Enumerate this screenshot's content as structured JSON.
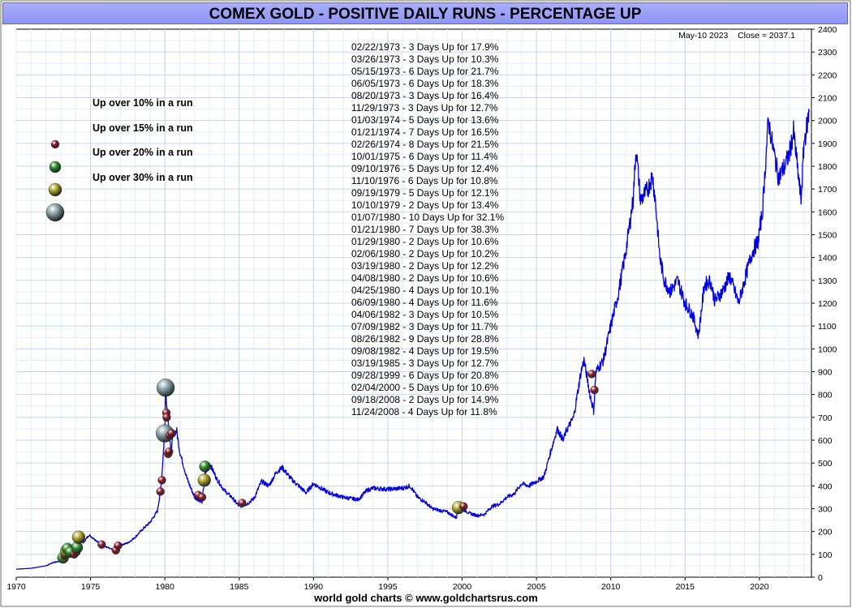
{
  "title": "COMEX GOLD - POSITIVE DAILY RUNS - PERCENTAGE UP",
  "footer": "world gold charts © www.goldchartsrus.com",
  "last_close": {
    "date": "May-10  2023",
    "label": "Close = 2037.1"
  },
  "legend": [
    {
      "label": "Up over 10% in a run",
      "color": "#8a1020",
      "size": "small"
    },
    {
      "label": "Up over 15% in a run",
      "color": "#1f8a1f",
      "size": "medium"
    },
    {
      "label": "Up over 20% in a run",
      "color": "#a8a01a",
      "size": "large"
    },
    {
      "label": "Up over 30% in a run",
      "color": "#7f9aa0",
      "size": "xlarge"
    }
  ],
  "runs": [
    "02/22/1973 - 3 Days Up for 17.9%",
    "03/26/1973 - 3 Days Up for 10.3%",
    "05/15/1973 - 6 Days Up for 21.7%",
    "06/05/1973 - 6 Days Up for 18.3%",
    "08/20/1973 - 3 Days Up for 16.4%",
    "11/29/1973 - 3 Days Up for 12.7%",
    "01/03/1974 - 5 Days Up for 13.6%",
    "01/21/1974 - 7 Days Up for 16.5%",
    "02/26/1974 - 8 Days Up for 21.5%",
    "10/01/1975 - 6 Days Up for 11.4%",
    "09/10/1976 - 5 Days Up for 12.4%",
    "11/10/1976 - 6 Days Up for 10.8%",
    "09/19/1979 - 5 Days Up for 12.1%",
    "10/10/1979 - 2 Days Up for 13.4%",
    "01/07/1980 - 10 Days Up for 32.1%",
    "01/21/1980 - 7 Days Up for 38.3%",
    "01/29/1980 - 2 Days Up for 10.6%",
    "02/06/1980 - 2 Days Up for 10.2%",
    "03/19/1980 - 2 Days Up for 12.2%",
    "04/08/1980 - 2 Days Up for 10.6%",
    "04/25/1980 - 4 Days Up for 10.1%",
    "06/09/1980 - 4 Days Up for 11.6%",
    "04/06/1982 - 3 Days Up for 10.5%",
    "07/09/1982 - 3 Days Up for 11.7%",
    "08/26/1982 - 9 Days Up for 28.8%",
    "09/08/1982 - 4 Days Up for 19.5%",
    "03/19/1985 - 3 Days Up for 12.7%",
    "09/28/1999 - 6 Days Up for 20.8%",
    "02/04/2000 - 5 Days Up for 10.6%",
    "09/18/2008 - 2 Days Up for 14.9%",
    "11/24/2008 - 4 Days Up for 11.8%"
  ],
  "chart_data": {
    "type": "line",
    "title": "COMEX GOLD - POSITIVE DAILY RUNS - PERCENTAGE UP",
    "xlabel": "",
    "ylabel": "",
    "xlim": [
      1970,
      2023.5
    ],
    "ylim": [
      0,
      2400
    ],
    "x_ticks": [
      1970,
      1975,
      1980,
      1985,
      1990,
      1995,
      2000,
      2005,
      2010,
      2015,
      2020
    ],
    "y_ticks": [
      0,
      100,
      200,
      300,
      400,
      500,
      600,
      700,
      800,
      900,
      1000,
      1100,
      1200,
      1300,
      1400,
      1500,
      1600,
      1700,
      1800,
      1900,
      2000,
      2100,
      2200,
      2300,
      2400
    ],
    "y_axis_side": "right",
    "grid": true,
    "series": [
      {
        "color": "#0000e0",
        "x": [
          1970.0,
          1971.0,
          1972.0,
          1972.5,
          1973.0,
          1973.2,
          1973.45,
          1973.7,
          1974.0,
          1974.2,
          1974.5,
          1974.9,
          1975.3,
          1975.8,
          1976.3,
          1976.7,
          1977.0,
          1977.5,
          1978.0,
          1978.5,
          1979.0,
          1979.5,
          1979.75,
          1980.0,
          1980.05,
          1980.2,
          1980.4,
          1980.6,
          1980.8,
          1981.0,
          1981.5,
          1982.0,
          1982.5,
          1982.7,
          1983.0,
          1983.5,
          1984.0,
          1984.5,
          1985.0,
          1985.5,
          1986.0,
          1986.5,
          1987.0,
          1987.5,
          1987.9,
          1988.5,
          1989.0,
          1989.5,
          1990.0,
          1991.0,
          1992.0,
          1993.0,
          1993.6,
          1994.0,
          1995.0,
          1996.0,
          1996.5,
          1997.0,
          1997.5,
          1998.0,
          1999.0,
          1999.6,
          1999.8,
          2000.0,
          2000.5,
          2001.0,
          2001.5,
          2002.0,
          2002.5,
          2003.0,
          2003.5,
          2004.0,
          2004.5,
          2005.0,
          2005.5,
          2006.0,
          2006.4,
          2006.8,
          2007.0,
          2007.5,
          2008.0,
          2008.2,
          2008.6,
          2008.85,
          2009.0,
          2009.5,
          2010.0,
          2010.5,
          2011.0,
          2011.5,
          2011.7,
          2012.0,
          2012.5,
          2012.8,
          2013.0,
          2013.3,
          2013.6,
          2014.0,
          2014.5,
          2015.0,
          2015.5,
          2015.9,
          2016.3,
          2016.7,
          2017.0,
          2017.5,
          2018.0,
          2018.6,
          2019.0,
          2019.5,
          2019.9,
          2020.2,
          2020.6,
          2021.0,
          2021.3,
          2021.7,
          2022.0,
          2022.3,
          2022.8,
          2023.0,
          2023.35
        ],
        "y": [
          35,
          39,
          50,
          65,
          70,
          90,
          120,
          100,
          130,
          175,
          150,
          185,
          165,
          140,
          125,
          115,
          140,
          150,
          175,
          210,
          240,
          290,
          400,
          650,
          825,
          700,
          550,
          630,
          640,
          550,
          430,
          350,
          330,
          450,
          500,
          430,
          380,
          350,
          310,
          320,
          345,
          420,
          400,
          460,
          480,
          430,
          400,
          370,
          410,
          370,
          350,
          340,
          380,
          390,
          385,
          390,
          400,
          350,
          330,
          300,
          285,
          260,
          310,
          300,
          280,
          270,
          275,
          310,
          320,
          350,
          365,
          410,
          400,
          420,
          440,
          560,
          650,
          600,
          640,
          700,
          900,
          950,
          800,
          730,
          900,
          950,
          1100,
          1240,
          1420,
          1650,
          1880,
          1650,
          1700,
          1760,
          1650,
          1400,
          1300,
          1250,
          1300,
          1200,
          1150,
          1060,
          1280,
          1300,
          1210,
          1250,
          1320,
          1200,
          1300,
          1420,
          1470,
          1600,
          2000,
          1850,
          1750,
          1800,
          1850,
          1950,
          1650,
          1900,
          2037
        ]
      }
    ],
    "markers": [
      {
        "x": 1973.15,
        "y": 85,
        "pct": 17.9
      },
      {
        "x": 1973.25,
        "y": 95,
        "pct": 10.3
      },
      {
        "x": 1973.4,
        "y": 115,
        "pct": 21.7
      },
      {
        "x": 1973.45,
        "y": 125,
        "pct": 18.3
      },
      {
        "x": 1973.65,
        "y": 110,
        "pct": 16.4
      },
      {
        "x": 1973.9,
        "y": 100,
        "pct": 12.7
      },
      {
        "x": 1974.05,
        "y": 110,
        "pct": 13.6
      },
      {
        "x": 1974.1,
        "y": 130,
        "pct": 16.5
      },
      {
        "x": 1974.2,
        "y": 175,
        "pct": 21.5
      },
      {
        "x": 1975.75,
        "y": 143,
        "pct": 11.4
      },
      {
        "x": 1976.7,
        "y": 118,
        "pct": 12.4
      },
      {
        "x": 1976.85,
        "y": 138,
        "pct": 10.8
      },
      {
        "x": 1979.7,
        "y": 375,
        "pct": 12.1
      },
      {
        "x": 1979.8,
        "y": 425,
        "pct": 13.4
      },
      {
        "x": 1980.0,
        "y": 630,
        "pct": 32.1
      },
      {
        "x": 1980.05,
        "y": 830,
        "pct": 38.3
      },
      {
        "x": 1980.1,
        "y": 720,
        "pct": 10.6
      },
      {
        "x": 1980.12,
        "y": 700,
        "pct": 10.2
      },
      {
        "x": 1980.22,
        "y": 540,
        "pct": 12.2
      },
      {
        "x": 1980.28,
        "y": 550,
        "pct": 10.6
      },
      {
        "x": 1980.32,
        "y": 620,
        "pct": 10.1
      },
      {
        "x": 1980.45,
        "y": 630,
        "pct": 11.6
      },
      {
        "x": 1982.25,
        "y": 360,
        "pct": 10.5
      },
      {
        "x": 1982.5,
        "y": 350,
        "pct": 11.7
      },
      {
        "x": 1982.65,
        "y": 425,
        "pct": 28.8
      },
      {
        "x": 1982.7,
        "y": 485,
        "pct": 19.5
      },
      {
        "x": 1985.2,
        "y": 325,
        "pct": 12.7
      },
      {
        "x": 1999.75,
        "y": 305,
        "pct": 20.8
      },
      {
        "x": 2000.1,
        "y": 310,
        "pct": 10.6
      },
      {
        "x": 2008.72,
        "y": 890,
        "pct": 14.9
      },
      {
        "x": 2008.9,
        "y": 820,
        "pct": 11.8
      }
    ]
  }
}
